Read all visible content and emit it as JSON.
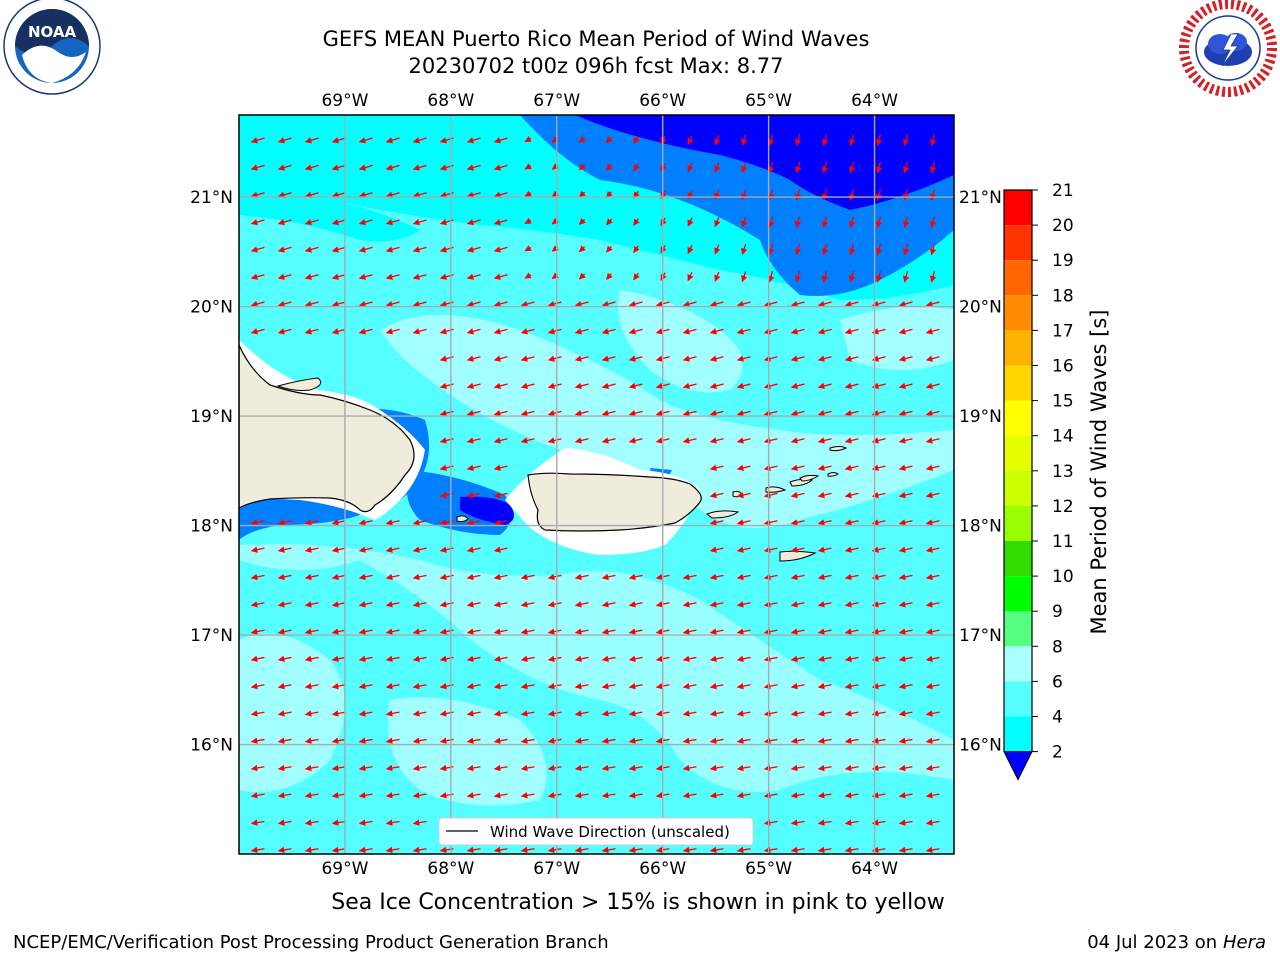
{
  "header": {
    "title_line1": "GEFS MEAN Puerto Rico Mean Period of Wind Waves",
    "title_line2": "20230702 t00z 096h fcst   Max: 8.77"
  },
  "logos": {
    "noaa": {
      "text": "NOAA",
      "ring_text": "NATIONAL OCEANIC AND ATMOSPHERIC ADMINISTRATION · U.S. DEPARTMENT OF COMMERCE"
    },
    "nws": {
      "ring_text": "NATIONAL WEATHER SERVICE"
    }
  },
  "map": {
    "lon_labels": [
      "69°W",
      "68°W",
      "67°W",
      "66°W",
      "65°W",
      "64°W"
    ],
    "lat_labels": [
      "21°N",
      "20°N",
      "19°N",
      "18°N",
      "17°N",
      "16°N"
    ],
    "lon_values": [
      -69,
      -68,
      -67,
      -66,
      -65,
      -64
    ],
    "lat_values": [
      21,
      20,
      19,
      18,
      17,
      16
    ],
    "extent": {
      "lon_min": -70.0,
      "lon_max": -63.25,
      "lat_min": 15.0,
      "lat_max": 21.75
    },
    "legend_label": "Wind Wave Direction (unscaled)",
    "arrow_color": "#ff0000",
    "land_color": "#efecdc"
  },
  "colorbar": {
    "label": "Mean Period of Wind Waves [s]",
    "ticks": [
      "21",
      "20",
      "19",
      "18",
      "17",
      "16",
      "15",
      "14",
      "13",
      "12",
      "11",
      "10",
      "9",
      "8",
      "6",
      "4",
      "2"
    ],
    "colors": [
      "#ff0000",
      "#ff3300",
      "#ff6600",
      "#ff8c00",
      "#ffb300",
      "#ffd700",
      "#ffff00",
      "#e6ff00",
      "#ccff00",
      "#99ff00",
      "#33dd00",
      "#00ff00",
      "#55ff80",
      "#aaffff",
      "#55ffff",
      "#00ffff",
      "#0080ff",
      "#0000ff"
    ]
  },
  "notes": {
    "sea_ice": "Sea Ice Concentration > 15% is shown in pink to yellow"
  },
  "footer": {
    "left": "NCEP/EMC/Verification Post Processing Product Generation Branch",
    "right_date": "04 Jul 2023 on ",
    "right_host": "Hera"
  }
}
